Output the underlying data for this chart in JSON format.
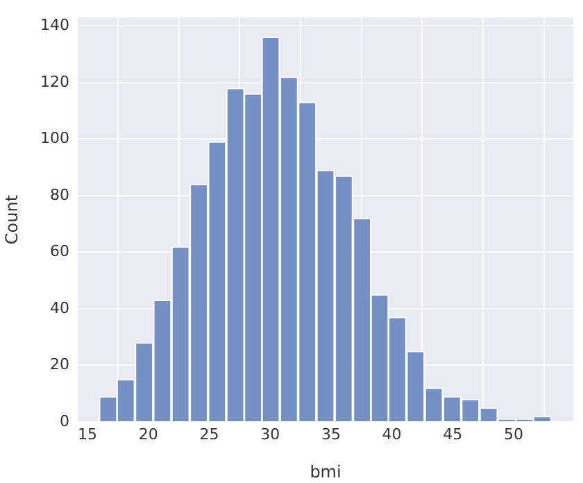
{
  "chart_data": {
    "type": "histogram",
    "xlabel": "bmi",
    "ylabel": "Count",
    "bins": [
      16.0,
      17.4,
      18.9,
      20.4,
      21.9,
      23.4,
      24.9,
      26.4,
      27.9,
      29.3,
      30.8,
      32.3,
      33.8,
      35.3,
      36.8,
      38.3,
      39.7,
      41.2,
      42.7,
      44.2,
      45.7,
      47.2,
      48.7,
      50.2,
      51.6,
      53.1
    ],
    "values": [
      9,
      15,
      28,
      43,
      62,
      84,
      99,
      118,
      116,
      136,
      122,
      113,
      89,
      87,
      72,
      45,
      37,
      25,
      12,
      9,
      8,
      5,
      1,
      1,
      2
    ],
    "color": "#7590c4",
    "xlim": [
      14.2,
      54.9
    ],
    "xticks": [
      15,
      20,
      25,
      30,
      35,
      40,
      45,
      50
    ],
    "ylim": [
      0,
      143
    ],
    "yticks": [
      0,
      20,
      40,
      60,
      80,
      100,
      120,
      140
    ],
    "grid": true
  }
}
